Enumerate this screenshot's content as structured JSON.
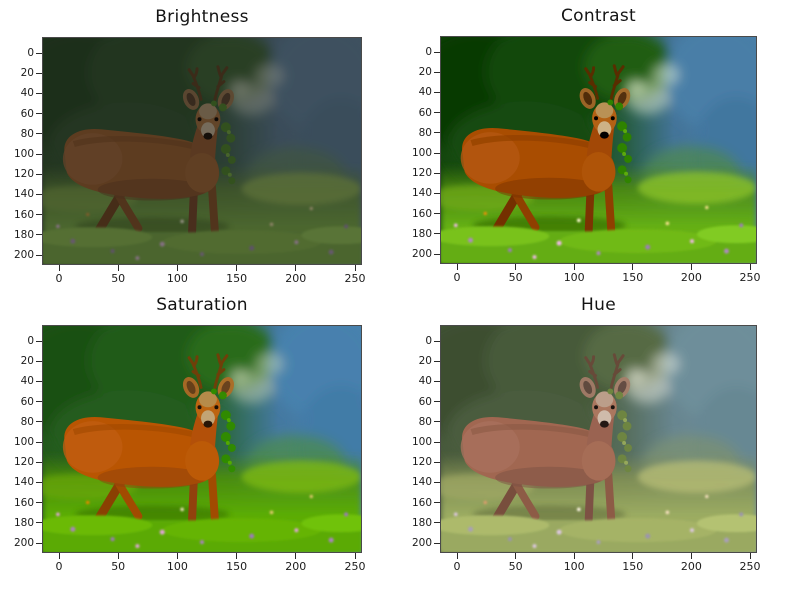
{
  "figure": {
    "kind": "image-augmentation-comparison-grid",
    "background": "#ffffff",
    "image_subject": "roe deer buck standing in a grassy meadow facing the camera, green leaves tangled in its antlers, blurred forest and blue-gray background"
  },
  "panels": [
    {
      "title": "Brightness",
      "effect": "darkened image",
      "css_filter": "brightness(0.66) saturate(0.95)"
    },
    {
      "title": "Contrast",
      "effect": "higher contrast image",
      "css_filter": "contrast(1.32) saturate(1.28) brightness(1.03)"
    },
    {
      "title": "Saturation",
      "effect": "more saturated image",
      "css_filter": "saturate(1.85) brightness(1.02)"
    },
    {
      "title": "Hue",
      "effect": "hue-shifted washed-out image",
      "css_filter": "hue-rotate(-14deg) saturate(0.72) brightness(1.16)"
    }
  ],
  "axes": {
    "x_tick_labels": [
      "0",
      "50",
      "100",
      "150",
      "200",
      "250"
    ],
    "y_tick_labels": [
      "0",
      "20",
      "40",
      "60",
      "80",
      "100",
      "120",
      "140",
      "160",
      "180",
      "200"
    ]
  },
  "colors": {
    "forest_green": "#33502f",
    "background_blue_gray": "#5d7b93",
    "grass_green": "#7fa94a",
    "deer_brown": "#8f5a2e",
    "title_text": "#141414",
    "tick_text": "#1c1c1c"
  },
  "chart_data": {
    "type": "image",
    "layout": "2x2 grid of subplots, pixel axes",
    "x_ticks": [
      0,
      50,
      100,
      150,
      200,
      250
    ],
    "y_ticks": [
      0,
      20,
      40,
      60,
      80,
      100,
      120,
      140,
      160,
      180,
      200
    ],
    "y_axis_direction": "downward (image row index)",
    "subplots": [
      {
        "row": 0,
        "col": 0,
        "title": "Brightness",
        "content": "deer photo with reduced brightness"
      },
      {
        "row": 0,
        "col": 1,
        "title": "Contrast",
        "content": "deer photo with increased contrast"
      },
      {
        "row": 1,
        "col": 0,
        "title": "Saturation",
        "content": "deer photo with increased saturation"
      },
      {
        "row": 1,
        "col": 1,
        "title": "Hue",
        "content": "deer photo with shifted hue, washed out"
      }
    ]
  }
}
